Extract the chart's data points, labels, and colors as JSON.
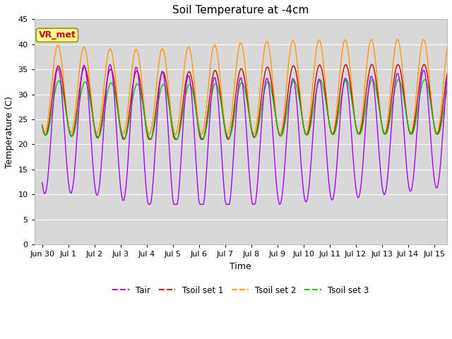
{
  "title": "Soil Temperature at -4cm",
  "xlabel": "Time",
  "ylabel": "Temperature (C)",
  "xlim_left": -0.3,
  "xlim_right": 15.5,
  "ylim": [
    0,
    45
  ],
  "yticks": [
    0,
    5,
    10,
    15,
    20,
    25,
    30,
    35,
    40,
    45
  ],
  "xtick_labels": [
    "Jun 30",
    "Jul 1",
    "Jul 2",
    "Jul 3",
    "Jul 4",
    "Jul 5",
    "Jul 6",
    "Jul 7",
    "Jul 8",
    "Jul 9",
    "Jul 10",
    "Jul 11",
    "Jul 12",
    "Jul 13",
    "Jul 14",
    "Jul 15"
  ],
  "xtick_positions": [
    0,
    1,
    2,
    3,
    4,
    5,
    6,
    7,
    8,
    9,
    10,
    11,
    12,
    13,
    14,
    15
  ],
  "colors": {
    "Tair": "#aa00ff",
    "Tsoil1": "#cc0000",
    "Tsoil2": "#ff9900",
    "Tsoil3": "#00cc00"
  },
  "legend_labels": [
    "Tair",
    "Tsoil set 1",
    "Tsoil set 2",
    "Tsoil set 3"
  ],
  "annotation_text": "VR_met",
  "annotation_color": "#cc0000",
  "annotation_bg": "#ffff99",
  "grid_color": "#ffffff",
  "plot_bg": "#d8d8d8",
  "fig_bg": "#ffffff",
  "title_fontsize": 11,
  "axis_fontsize": 9,
  "tick_fontsize": 8,
  "linewidth": 1.0
}
